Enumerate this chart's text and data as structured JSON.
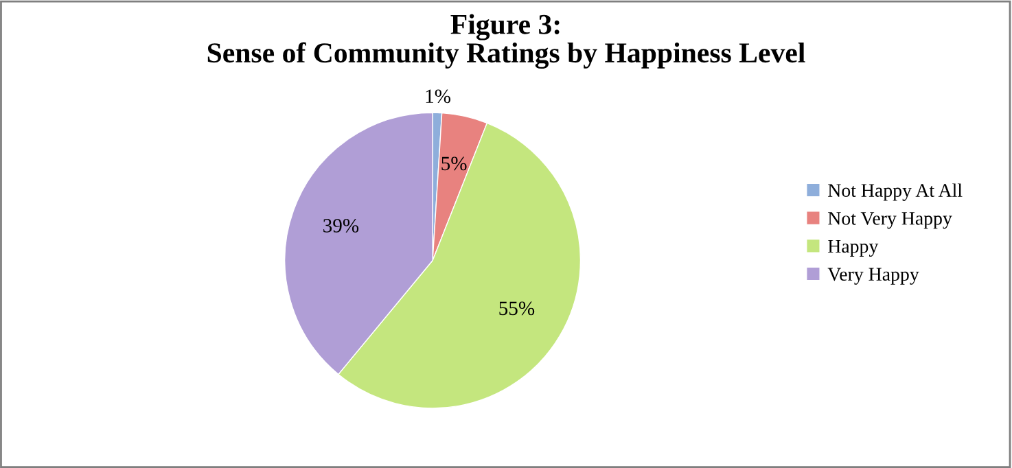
{
  "chart_data": {
    "type": "pie",
    "title": "Figure 3:\nSense of Community Ratings by Happiness Level",
    "categories": [
      "Not Happy At All",
      "Not Very Happy",
      "Happy",
      "Very Happy"
    ],
    "values": [
      1,
      5,
      55,
      39
    ],
    "colors": [
      "#8eaedb",
      "#e8827f",
      "#c4e67e",
      "#b09ed6"
    ],
    "value_labels": [
      "1%",
      "5%",
      "55%",
      "39%"
    ],
    "legend": "right"
  }
}
